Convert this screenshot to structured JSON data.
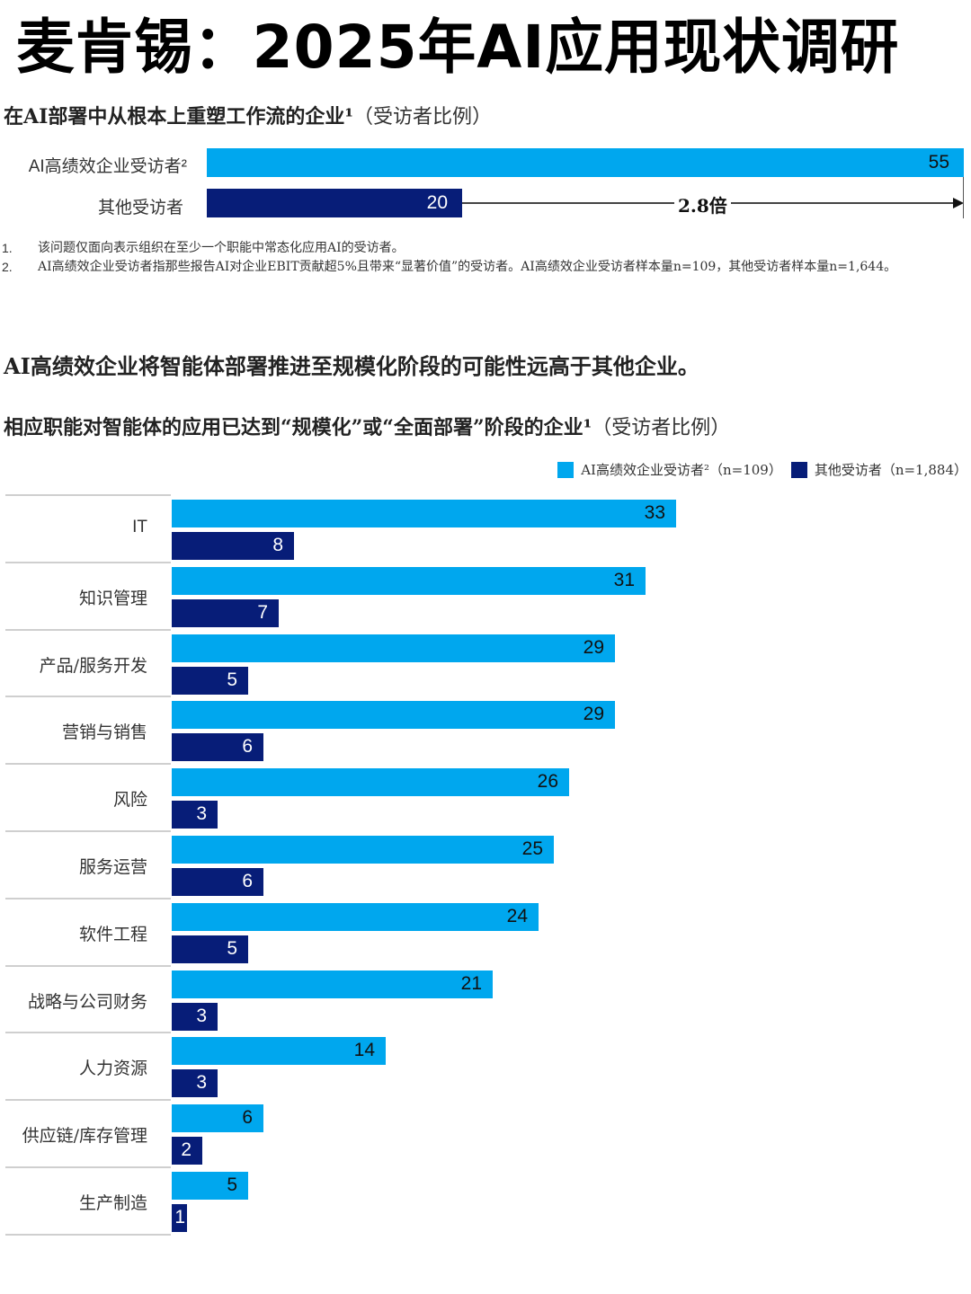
{
  "page": {
    "title": "麦肯锡：2025年AI应用现状调研"
  },
  "section1": {
    "title": "在AI部署中从根本上重塑工作流的企业¹",
    "title_suffix": "（受访者比例）",
    "bars": [
      {
        "label": "AI高绩效企业受访者²",
        "value": "55",
        "color": "#00a7ee"
      },
      {
        "label": "其他受访者",
        "value": "20",
        "color": "#071d78"
      }
    ],
    "ratio_label": "2.8倍"
  },
  "footnotes": [
    {
      "num": "1.",
      "text": "该问题仅面向表示组织在至少一个职能中常态化应用AI的受访者。"
    },
    {
      "num": "2.",
      "text": "AI高绩效企业受访者指那些报告AI对企业EBIT贡献超5%且带来“显著价值”的受访者。AI高绩效企业受访者样本量n=109，其他受访者样本量n=1,644。"
    }
  ],
  "section2": {
    "headline": "AI高绩效企业将智能体部署推进至规模化阶段的可能性远高于其他企业。",
    "title": "相应职能对智能体的应用已达到“规模化”或“全面部署”阶段的企业¹",
    "title_suffix": "（受访者比例）",
    "legend": [
      {
        "label": "AI高绩效企业受访者²（n=109）",
        "color": "#00a7ee"
      },
      {
        "label": "其他受访者（n=1,884）",
        "color": "#071d78"
      }
    ]
  },
  "chart_data": [
    {
      "type": "bar",
      "orientation": "horizontal",
      "title": "在AI部署中从根本上重塑工作流的企业¹（受访者比例）",
      "categories": [
        "AI高绩效企业受访者²",
        "其他受访者"
      ],
      "values": [
        55,
        20
      ],
      "annotation": "2.8倍",
      "xlim": [
        0,
        55
      ]
    },
    {
      "type": "bar",
      "orientation": "horizontal",
      "title": "相应职能对智能体的应用已达到“规模化”或“全面部署”阶段的企业¹（受访者比例）",
      "categories": [
        "IT",
        "知识管理",
        "产品/服务开发",
        "营销与销售",
        "风险",
        "服务运营",
        "软件工程",
        "战略与公司财务",
        "人力资源",
        "供应链/库存管理",
        "生产制造"
      ],
      "series": [
        {
          "name": "AI高绩效企业受访者²（n=109）",
          "color": "#00a7ee",
          "values": [
            33,
            31,
            29,
            29,
            26,
            25,
            24,
            21,
            14,
            6,
            5
          ]
        },
        {
          "name": "其他受访者（n=1,884）",
          "color": "#071d78",
          "values": [
            8,
            7,
            5,
            6,
            3,
            6,
            5,
            3,
            3,
            2,
            1
          ]
        }
      ],
      "legend_position": "top-right",
      "grid": false
    }
  ]
}
